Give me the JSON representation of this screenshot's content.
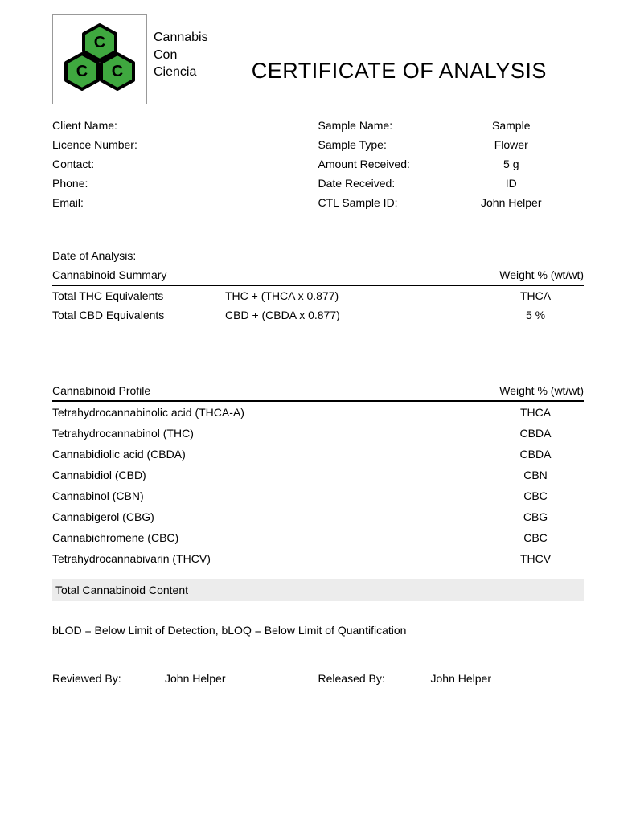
{
  "brand": {
    "line1": "Cannabis",
    "line2": "Con",
    "line3": "Ciencia"
  },
  "title": "CERTIFICATE OF ANALYSIS",
  "logo": {
    "hex_fill": "#3fa83f",
    "hex_stroke": "#000000",
    "letter": "C",
    "letter_color": "#000000"
  },
  "client": {
    "name_label": "Client Name:",
    "licence_label": "Licence Number:",
    "contact_label": "Contact:",
    "phone_label": "Phone:",
    "email_label": "Email:"
  },
  "sample": {
    "name_label": "Sample Name:",
    "name_value": "Sample",
    "type_label": "Sample Type:",
    "type_value": "Flower",
    "amount_label": "Amount Received:",
    "amount_value": "5 g",
    "date_label": "Date Received:",
    "date_value": "ID",
    "ctl_label": "CTL Sample ID:",
    "ctl_value": "John Helper"
  },
  "analysis_date_label": "Date of Analysis:",
  "summary": {
    "header_left": "Cannabinoid Summary",
    "header_right": "Weight % (wt/wt)",
    "rows": [
      {
        "label": "Total THC Equivalents",
        "formula": "THC + (THCA x 0.877)",
        "value": "THCA"
      },
      {
        "label": "Total CBD Equivalents",
        "formula": "CBD + (CBDA x 0.877)",
        "value": "5 %"
      }
    ]
  },
  "profile": {
    "header_left": "Cannabinoid Profile",
    "header_right": "Weight % (wt/wt)",
    "rows": [
      {
        "label": "Tetrahydrocannabinolic acid (THCA-A)",
        "value": "THCA"
      },
      {
        "label": "Tetrahydrocannabinol (THC)",
        "value": "CBDA"
      },
      {
        "label": "Cannabidiolic acid (CBDA)",
        "value": "CBDA"
      },
      {
        "label": "Cannabidiol (CBD)",
        "value": "CBN"
      },
      {
        "label": "Cannabinol (CBN)",
        "value": "CBC"
      },
      {
        "label": "Cannabigerol (CBG)",
        "value": "CBG"
      },
      {
        "label": "Cannabichromene (CBC)",
        "value": "CBC"
      },
      {
        "label": "Tetrahydrocannabivarin (THCV)",
        "value": "THCV"
      }
    ]
  },
  "total_label": "Total Cannabinoid Content",
  "footnote": "bLOD = Below Limit of Detection, bLOQ = Below Limit of Quantification",
  "signoff": {
    "reviewed_label": "Reviewed By:",
    "reviewed_value": "John Helper",
    "released_label": "Released By:",
    "released_value": "John Helper"
  }
}
